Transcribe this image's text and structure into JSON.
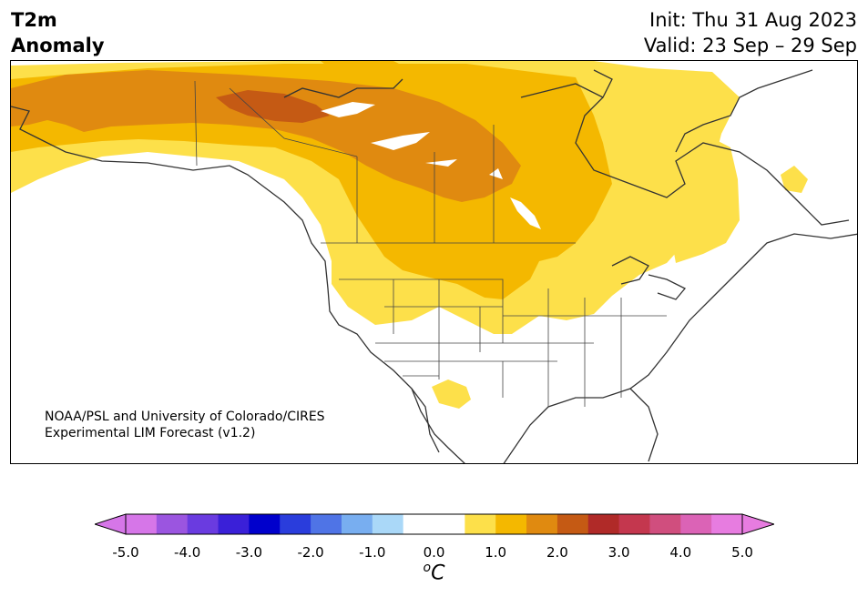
{
  "title": {
    "line1": "T2m",
    "line2": "Anomaly"
  },
  "dates": {
    "init": "Init: Thu 31 Aug 2023",
    "valid": "Valid: 23 Sep – 29 Sep"
  },
  "credit": {
    "line1": "NOAA/PSL and University of Colorado/CIRES",
    "line2": "Experimental LIM Forecast (v1.2)"
  },
  "colorbar": {
    "ticks": [
      "-5.0",
      "-4.0",
      "-3.0",
      "-2.0",
      "-1.0",
      "0.0",
      "1.0",
      "2.0",
      "3.0",
      "4.0",
      "5.0"
    ],
    "unit_base": "C",
    "unit_sup": "o",
    "colors": [
      "#d676e8",
      "#9b55e0",
      "#6a3be0",
      "#3a20d8",
      "#0000cc",
      "#2a3ddc",
      "#4f74e6",
      "#78aef0",
      "#aad8f8",
      "#ffffff",
      "#ffffff",
      "#fde04a",
      "#f4b800",
      "#e08a10",
      "#c55a14",
      "#b02a28",
      "#c4374e",
      "#d04e7e",
      "#db63b6",
      "#e77ce0"
    ],
    "under_color": "#d676e8",
    "over_color": "#e77ce0"
  },
  "anomaly_colors": {
    "pale": "#fde04a",
    "light": "#f4b800",
    "medium": "#e08a10",
    "strong": "#c55a14"
  }
}
